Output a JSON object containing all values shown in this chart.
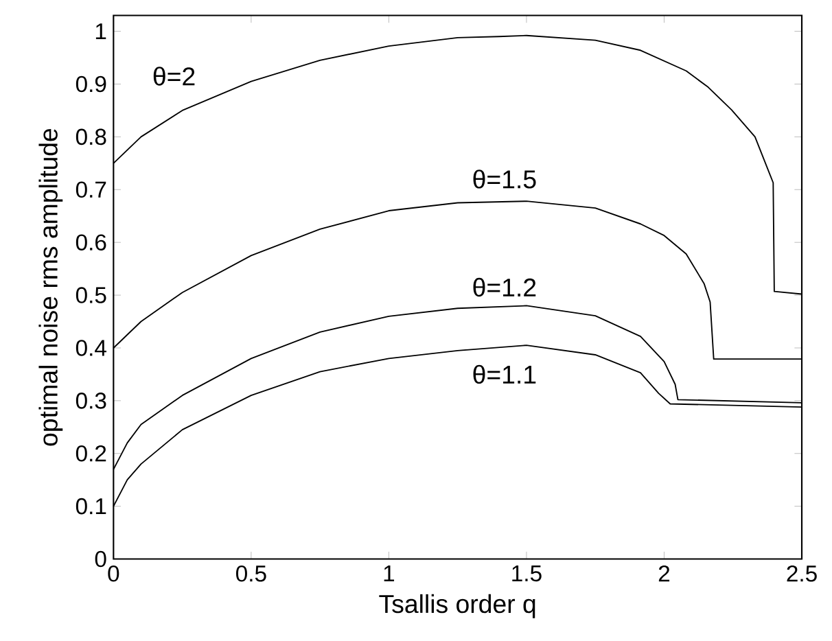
{
  "chart_data": {
    "type": "line",
    "xlabel": "Tsallis order q",
    "ylabel": "optimal noise rms amplitude",
    "xlim": [
      0,
      2.5
    ],
    "ylim": [
      0,
      1.03
    ],
    "xticks": [
      0,
      0.5,
      1,
      1.5,
      2,
      2.5
    ],
    "yticks": [
      0,
      0.1,
      0.2,
      0.3,
      0.4,
      0.5,
      0.6,
      0.7,
      0.8,
      0.9,
      1
    ],
    "series": [
      {
        "name": "θ=2",
        "color": "#000000",
        "x": [
          0,
          0.1,
          0.25,
          0.5,
          0.75,
          1,
          1.25,
          1.4,
          1.5,
          1.75,
          1.914,
          2.08,
          2.16,
          2.245,
          2.33,
          2.396,
          2.4,
          2.5
        ],
        "values": [
          0.75,
          0.8,
          0.85,
          0.905,
          0.945,
          0.972,
          0.988,
          0.99,
          0.992,
          0.983,
          0.964,
          0.925,
          0.894,
          0.851,
          0.8,
          0.713,
          0.507,
          0.502
        ]
      },
      {
        "name": "θ=1.5",
        "color": "#000000",
        "x": [
          0,
          0.1,
          0.25,
          0.5,
          0.75,
          1,
          1.25,
          1.5,
          1.75,
          1.914,
          2.0,
          2.08,
          2.145,
          2.167,
          2.18,
          2.5
        ],
        "values": [
          0.4,
          0.45,
          0.505,
          0.575,
          0.625,
          0.66,
          0.675,
          0.678,
          0.665,
          0.635,
          0.613,
          0.578,
          0.522,
          0.487,
          0.379,
          0.379
        ]
      },
      {
        "name": "θ=1.2",
        "color": "#000000",
        "x": [
          0,
          0.05,
          0.1,
          0.25,
          0.5,
          0.75,
          1,
          1.25,
          1.5,
          1.75,
          1.914,
          2.0,
          2.04,
          2.05,
          2.5
        ],
        "values": [
          0.17,
          0.22,
          0.255,
          0.31,
          0.38,
          0.43,
          0.46,
          0.475,
          0.48,
          0.461,
          0.422,
          0.374,
          0.331,
          0.302,
          0.296
        ]
      },
      {
        "name": "θ=1.1",
        "color": "#000000",
        "x": [
          0,
          0.05,
          0.1,
          0.25,
          0.5,
          0.75,
          1,
          1.25,
          1.5,
          1.75,
          1.914,
          1.98,
          2.022,
          2.5
        ],
        "values": [
          0.1,
          0.15,
          0.18,
          0.245,
          0.31,
          0.355,
          0.38,
          0.395,
          0.405,
          0.387,
          0.353,
          0.314,
          0.294,
          0.288
        ]
      }
    ]
  }
}
